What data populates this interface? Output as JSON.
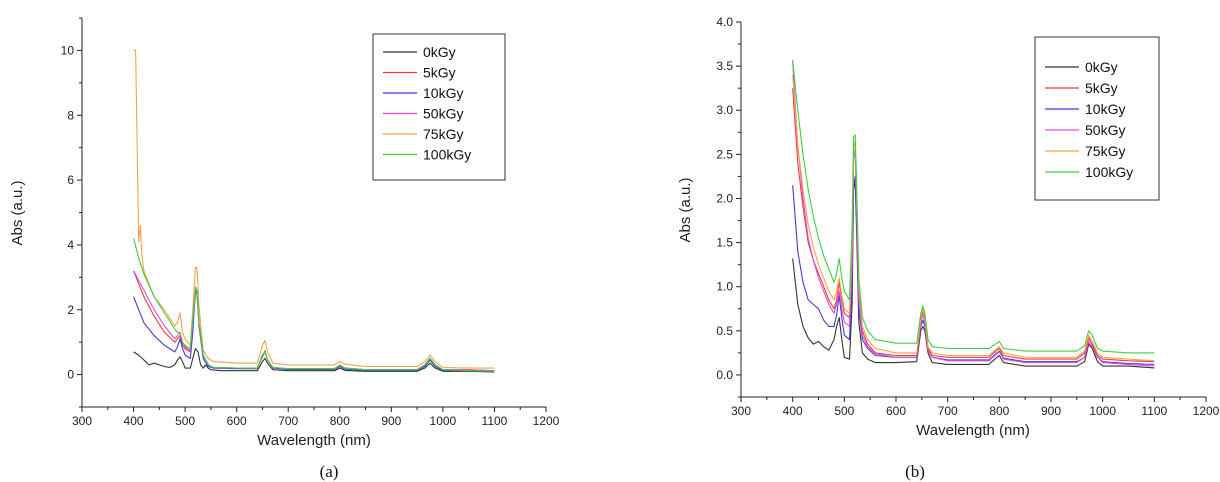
{
  "chart_data": [
    {
      "type": "line",
      "caption": "(a)",
      "xlabel": "Wavelength (nm)",
      "ylabel": "Abs (a.u.)",
      "xlim": [
        300,
        1200
      ],
      "ylim": [
        -1,
        11
      ],
      "xticks": [
        300,
        400,
        500,
        600,
        700,
        800,
        900,
        1000,
        1100,
        1200
      ],
      "yticks": [
        0,
        2,
        4,
        6,
        8,
        10
      ],
      "legend_position": "top-right",
      "series": [
        {
          "name": "0kGy",
          "color": "#333333",
          "x": [
            400,
            410,
            420,
            430,
            440,
            450,
            460,
            470,
            480,
            485,
            490,
            495,
            500,
            510,
            515,
            520,
            525,
            530,
            535,
            540,
            545,
            550,
            570,
            600,
            640,
            650,
            655,
            660,
            670,
            700,
            760,
            790,
            800,
            810,
            850,
            900,
            950,
            965,
            975,
            985,
            1000,
            1050,
            1100
          ],
          "y": [
            0.7,
            0.6,
            0.45,
            0.3,
            0.35,
            0.3,
            0.25,
            0.22,
            0.3,
            0.45,
            0.55,
            0.4,
            0.2,
            0.2,
            0.5,
            0.8,
            0.7,
            0.3,
            0.2,
            0.3,
            0.2,
            0.15,
            0.12,
            0.12,
            0.12,
            0.4,
            0.5,
            0.35,
            0.15,
            0.12,
            0.12,
            0.12,
            0.2,
            0.13,
            0.1,
            0.1,
            0.1,
            0.2,
            0.35,
            0.2,
            0.1,
            0.1,
            0.08
          ]
        },
        {
          "name": "5kGy",
          "color": "#ee3b3b",
          "x": [
            400,
            420,
            440,
            460,
            480,
            485,
            490,
            495,
            500,
            510,
            515,
            520,
            523,
            527,
            535,
            545,
            555,
            600,
            640,
            650,
            655,
            660,
            670,
            700,
            790,
            800,
            810,
            850,
            900,
            950,
            965,
            975,
            985,
            1000,
            1050,
            1100
          ],
          "y": [
            3.2,
            2.4,
            1.8,
            1.3,
            1.0,
            1.1,
            1.2,
            0.9,
            0.8,
            0.7,
            1.5,
            2.5,
            2.5,
            1.6,
            0.6,
            0.3,
            0.22,
            0.2,
            0.2,
            0.55,
            0.7,
            0.45,
            0.22,
            0.18,
            0.18,
            0.3,
            0.2,
            0.15,
            0.15,
            0.15,
            0.3,
            0.5,
            0.3,
            0.15,
            0.15,
            0.12
          ]
        },
        {
          "name": "10kGy",
          "color": "#3d3ddd",
          "x": [
            400,
            420,
            440,
            460,
            480,
            485,
            490,
            495,
            500,
            510,
            515,
            520,
            523,
            527,
            535,
            545,
            555,
            600,
            640,
            650,
            655,
            660,
            670,
            700,
            790,
            800,
            810,
            850,
            900,
            950,
            965,
            975,
            985,
            1000,
            1050,
            1100
          ],
          "y": [
            2.4,
            1.6,
            1.2,
            0.9,
            0.7,
            0.85,
            1.1,
            0.8,
            0.6,
            0.5,
            1.3,
            2.6,
            2.5,
            1.5,
            0.5,
            0.25,
            0.2,
            0.18,
            0.18,
            0.6,
            0.7,
            0.45,
            0.2,
            0.16,
            0.16,
            0.25,
            0.17,
            0.13,
            0.13,
            0.13,
            0.25,
            0.45,
            0.25,
            0.13,
            0.12,
            0.1
          ]
        },
        {
          "name": "50kGy",
          "color": "#e34ae3",
          "x": [
            400,
            420,
            440,
            460,
            480,
            485,
            490,
            495,
            500,
            510,
            515,
            520,
            523,
            527,
            535,
            545,
            555,
            600,
            640,
            650,
            655,
            660,
            670,
            700,
            790,
            800,
            810,
            850,
            900,
            950,
            965,
            975,
            985,
            1000,
            1050,
            1100
          ],
          "y": [
            3.2,
            2.6,
            2.0,
            1.5,
            1.1,
            1.2,
            1.3,
            1.0,
            0.85,
            0.75,
            1.6,
            2.6,
            2.6,
            1.6,
            0.6,
            0.3,
            0.22,
            0.2,
            0.2,
            0.55,
            0.7,
            0.45,
            0.22,
            0.18,
            0.18,
            0.28,
            0.2,
            0.15,
            0.15,
            0.15,
            0.3,
            0.5,
            0.3,
            0.15,
            0.14,
            0.12
          ]
        },
        {
          "name": "75kGy",
          "color": "#f5a24a",
          "x": [
            400,
            404,
            407,
            410,
            413,
            416,
            420,
            440,
            460,
            480,
            485,
            490,
            495,
            500,
            510,
            515,
            520,
            523,
            527,
            535,
            545,
            555,
            600,
            640,
            650,
            655,
            660,
            670,
            700,
            790,
            800,
            810,
            850,
            900,
            950,
            965,
            975,
            985,
            1000,
            1050,
            1100
          ],
          "y": [
            10.0,
            10.0,
            7.0,
            4.1,
            4.6,
            3.7,
            3.2,
            2.4,
            2.0,
            1.5,
            1.6,
            1.9,
            1.3,
            1.1,
            0.9,
            2.0,
            3.3,
            3.3,
            2.1,
            0.75,
            0.5,
            0.4,
            0.35,
            0.35,
            0.9,
            1.05,
            0.7,
            0.35,
            0.3,
            0.3,
            0.4,
            0.32,
            0.25,
            0.25,
            0.25,
            0.4,
            0.6,
            0.4,
            0.22,
            0.2,
            0.2
          ]
        },
        {
          "name": "100kGy",
          "color": "#3fcf3f",
          "x": [
            400,
            410,
            420,
            440,
            460,
            480,
            485,
            490,
            495,
            500,
            510,
            515,
            520,
            523,
            527,
            535,
            545,
            555,
            600,
            640,
            650,
            655,
            660,
            670,
            700,
            790,
            800,
            810,
            850,
            900,
            950,
            965,
            975,
            985,
            1000,
            1050,
            1100
          ],
          "y": [
            4.2,
            3.6,
            3.1,
            2.4,
            1.9,
            1.4,
            1.3,
            1.3,
            1.0,
            0.9,
            0.8,
            1.7,
            2.7,
            2.6,
            1.6,
            0.6,
            0.3,
            0.22,
            0.2,
            0.2,
            0.55,
            0.75,
            0.45,
            0.22,
            0.18,
            0.18,
            0.3,
            0.2,
            0.15,
            0.15,
            0.15,
            0.3,
            0.5,
            0.3,
            0.15,
            0.12,
            0.1
          ]
        }
      ]
    },
    {
      "type": "line",
      "caption": "(b)",
      "xlabel": "Wavelength (nm)",
      "ylabel": "Abs (a.u.)",
      "xlim": [
        300,
        1200
      ],
      "ylim": [
        -0.25,
        4.0
      ],
      "xticks": [
        300,
        400,
        500,
        600,
        700,
        800,
        900,
        1000,
        1100,
        1200
      ],
      "yticks": [
        0.0,
        0.5,
        1.0,
        1.5,
        2.0,
        2.5,
        3.0,
        3.5,
        4.0
      ],
      "legend_position": "top-right",
      "series": [
        {
          "name": "0kGy",
          "color": "#333333",
          "x": [
            400,
            410,
            420,
            430,
            440,
            450,
            460,
            470,
            480,
            485,
            490,
            495,
            500,
            510,
            515,
            518,
            521,
            524,
            528,
            535,
            545,
            560,
            600,
            640,
            648,
            652,
            656,
            662,
            670,
            700,
            780,
            795,
            800,
            808,
            850,
            900,
            950,
            965,
            973,
            980,
            990,
            1000,
            1050,
            1100
          ],
          "y": [
            1.32,
            0.8,
            0.55,
            0.42,
            0.35,
            0.38,
            0.32,
            0.28,
            0.4,
            0.55,
            0.65,
            0.4,
            0.2,
            0.18,
            0.8,
            2.1,
            2.2,
            1.6,
            0.6,
            0.25,
            0.18,
            0.14,
            0.14,
            0.15,
            0.5,
            0.55,
            0.5,
            0.25,
            0.14,
            0.12,
            0.12,
            0.2,
            0.22,
            0.14,
            0.1,
            0.1,
            0.1,
            0.15,
            0.35,
            0.3,
            0.15,
            0.1,
            0.1,
            0.08
          ]
        },
        {
          "name": "5kGy",
          "color": "#ee3b3b",
          "x": [
            400,
            410,
            420,
            430,
            440,
            450,
            460,
            470,
            480,
            485,
            490,
            495,
            500,
            510,
            515,
            518,
            521,
            524,
            528,
            535,
            545,
            560,
            600,
            640,
            648,
            652,
            656,
            662,
            670,
            700,
            780,
            795,
            800,
            808,
            850,
            900,
            950,
            965,
            973,
            980,
            990,
            1000,
            1050,
            1100
          ],
          "y": [
            3.25,
            2.4,
            1.9,
            1.5,
            1.3,
            1.15,
            1.0,
            0.85,
            0.75,
            0.85,
            1.05,
            0.85,
            0.7,
            0.65,
            1.4,
            2.45,
            2.55,
            1.9,
            0.9,
            0.5,
            0.35,
            0.25,
            0.22,
            0.22,
            0.6,
            0.72,
            0.6,
            0.3,
            0.22,
            0.2,
            0.2,
            0.28,
            0.3,
            0.22,
            0.18,
            0.18,
            0.18,
            0.25,
            0.42,
            0.35,
            0.22,
            0.18,
            0.16,
            0.15
          ]
        },
        {
          "name": "10kGy",
          "color": "#3d3ddd",
          "x": [
            400,
            410,
            420,
            430,
            440,
            450,
            460,
            470,
            480,
            485,
            490,
            495,
            500,
            510,
            515,
            518,
            521,
            524,
            528,
            535,
            545,
            560,
            600,
            640,
            648,
            652,
            656,
            662,
            670,
            700,
            780,
            795,
            800,
            808,
            850,
            900,
            950,
            965,
            973,
            980,
            990,
            1000,
            1050,
            1100
          ],
          "y": [
            2.15,
            1.4,
            1.05,
            0.85,
            0.8,
            0.75,
            0.62,
            0.55,
            0.55,
            0.68,
            0.9,
            0.65,
            0.45,
            0.4,
            1.1,
            2.15,
            2.25,
            1.7,
            0.75,
            0.4,
            0.3,
            0.22,
            0.2,
            0.2,
            0.55,
            0.62,
            0.55,
            0.28,
            0.2,
            0.17,
            0.17,
            0.25,
            0.27,
            0.19,
            0.15,
            0.15,
            0.15,
            0.2,
            0.38,
            0.32,
            0.2,
            0.15,
            0.13,
            0.12
          ]
        },
        {
          "name": "50kGy",
          "color": "#e34ae3",
          "x": [
            400,
            410,
            420,
            430,
            440,
            450,
            460,
            470,
            480,
            485,
            490,
            495,
            500,
            510,
            515,
            518,
            521,
            524,
            528,
            535,
            545,
            560,
            600,
            640,
            648,
            652,
            656,
            662,
            670,
            700,
            780,
            795,
            800,
            808,
            850,
            900,
            950,
            965,
            973,
            980,
            990,
            1000,
            1050,
            1100
          ],
          "y": [
            3.55,
            2.6,
            2.0,
            1.55,
            1.3,
            1.1,
            0.95,
            0.8,
            0.7,
            0.8,
            0.95,
            0.75,
            0.6,
            0.55,
            1.3,
            2.45,
            2.55,
            1.9,
            0.85,
            0.45,
            0.32,
            0.24,
            0.2,
            0.2,
            0.58,
            0.7,
            0.58,
            0.28,
            0.2,
            0.16,
            0.16,
            0.24,
            0.26,
            0.18,
            0.14,
            0.14,
            0.14,
            0.2,
            0.38,
            0.32,
            0.2,
            0.14,
            0.12,
            0.1
          ]
        },
        {
          "name": "75kGy",
          "color": "#f5a24a",
          "x": [
            400,
            410,
            420,
            430,
            440,
            450,
            460,
            470,
            480,
            485,
            490,
            495,
            500,
            510,
            515,
            518,
            521,
            524,
            528,
            535,
            545,
            560,
            600,
            640,
            648,
            652,
            656,
            662,
            670,
            700,
            780,
            795,
            800,
            808,
            850,
            900,
            950,
            965,
            973,
            980,
            990,
            1000,
            1050,
            1100
          ],
          "y": [
            3.4,
            2.6,
            2.1,
            1.7,
            1.45,
            1.25,
            1.1,
            0.95,
            0.85,
            0.95,
            1.1,
            0.9,
            0.75,
            0.7,
            1.5,
            2.55,
            2.65,
            2.0,
            1.0,
            0.55,
            0.4,
            0.3,
            0.25,
            0.25,
            0.65,
            0.75,
            0.65,
            0.32,
            0.25,
            0.22,
            0.22,
            0.3,
            0.32,
            0.25,
            0.2,
            0.2,
            0.2,
            0.27,
            0.45,
            0.38,
            0.25,
            0.2,
            0.18,
            0.16
          ]
        },
        {
          "name": "100kGy",
          "color": "#3fcf3f",
          "x": [
            400,
            410,
            420,
            430,
            440,
            450,
            460,
            470,
            480,
            485,
            490,
            495,
            500,
            510,
            515,
            518,
            521,
            524,
            528,
            535,
            545,
            560,
            600,
            640,
            648,
            652,
            656,
            662,
            670,
            700,
            780,
            795,
            800,
            808,
            850,
            900,
            950,
            965,
            973,
            980,
            990,
            1000,
            1050,
            1100
          ],
          "y": [
            3.57,
            3.0,
            2.5,
            2.1,
            1.8,
            1.55,
            1.35,
            1.2,
            1.05,
            1.15,
            1.32,
            1.1,
            0.95,
            0.85,
            1.7,
            2.7,
            2.72,
            2.15,
            1.1,
            0.65,
            0.5,
            0.4,
            0.36,
            0.36,
            0.7,
            0.78,
            0.7,
            0.4,
            0.32,
            0.3,
            0.3,
            0.36,
            0.38,
            0.3,
            0.27,
            0.27,
            0.27,
            0.33,
            0.5,
            0.45,
            0.3,
            0.27,
            0.25,
            0.25
          ]
        }
      ]
    }
  ]
}
